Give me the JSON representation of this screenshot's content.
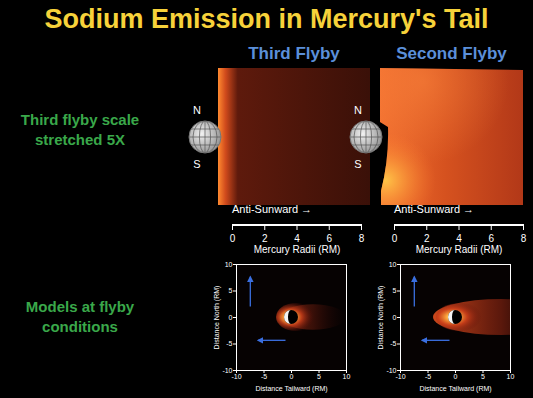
{
  "title": "Sodium Emission in Mercury's Tail",
  "row_labels": [
    "Third flyby scale stretched 5X",
    "Models at flyby conditions"
  ],
  "chart_data": [
    {
      "type": "image",
      "title": "Third Flyby",
      "pole_labels": [
        "N",
        "S"
      ],
      "x_arrow_label": "Anti-Sunward →",
      "x_label": "Mercury Radii (RM)",
      "xlim": [
        0,
        8
      ],
      "xticks": [
        0,
        2,
        4,
        6,
        8
      ],
      "tick_labels": "x"
    },
    {
      "type": "image",
      "title": "Second Flyby",
      "pole_labels": [
        "N",
        "S"
      ],
      "x_arrow_label": "Anti-Sunward →",
      "x_label": "Mercury Radii (RM)",
      "xlim": [
        0,
        8
      ],
      "xticks": [
        0,
        2,
        4,
        6,
        8
      ],
      "tick_labels": "x"
    },
    {
      "type": "image",
      "x_label": "Distance Tailward (RM)",
      "y_label": "Distance North (RM)",
      "xlim": [
        -10,
        10
      ],
      "ylim": [
        -10,
        10
      ],
      "xticks": [
        -10,
        -5,
        0,
        5,
        10
      ],
      "yticks": [
        -10,
        -5,
        0,
        5,
        10
      ]
    },
    {
      "type": "image",
      "x_label": "Distance Tailward (RM)",
      "y_label": "Distance North (RM)",
      "xlim": [
        -10,
        10
      ],
      "ylim": [
        -10,
        10
      ],
      "xticks": [
        -10,
        -5,
        0,
        5,
        10
      ],
      "yticks": [
        -10,
        -5,
        0,
        5,
        10
      ]
    }
  ]
}
